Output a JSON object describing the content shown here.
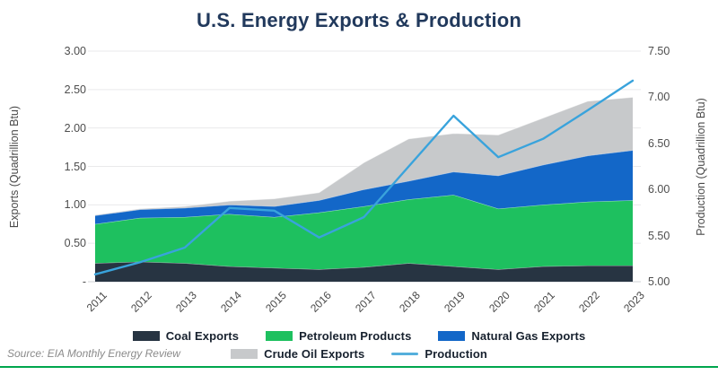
{
  "title": "U.S. Energy Exports & Production",
  "source": "Source: EIA Monthly Energy Review",
  "colors": {
    "title": "#21395c",
    "coal": "#273442",
    "petroleum": "#1ec05f",
    "natural_gas": "#1367c8",
    "crude_oil": "#c7c9cb",
    "production_line": "#39a3dc",
    "gridline": "#e9eaeb",
    "axis_line": "#cfd2d4",
    "accent_bar": "#00a64d"
  },
  "axes": {
    "left": {
      "title": "Exports (Quadrillion Btu)",
      "ticks": [
        "3.00",
        "2.50",
        "2.00",
        "1.50",
        "1.00",
        "0.50",
        "-"
      ],
      "tick_values": [
        3.0,
        2.5,
        2.0,
        1.5,
        1.0,
        0.5,
        0
      ],
      "range": [
        0,
        3.0
      ]
    },
    "right": {
      "title": "Production (Quadrillion Btu)",
      "ticks": [
        "7.50",
        "7.00",
        "6.50",
        "6.00",
        "5.50",
        "5.00"
      ],
      "tick_values": [
        7.5,
        7.0,
        6.5,
        6.0,
        5.5,
        5.0
      ],
      "range": [
        5.0,
        7.5
      ]
    }
  },
  "legend": {
    "rows": [
      [
        {
          "label": "Coal Exports",
          "color": "#273442",
          "shape": "rect"
        },
        {
          "label": "Petroleum Products",
          "color": "#1ec05f",
          "shape": "rect"
        },
        {
          "label": "Natural Gas Exports",
          "color": "#1367c8",
          "shape": "rect"
        }
      ],
      [
        {
          "label": "Crude Oil Exports",
          "color": "#c7c9cb",
          "shape": "rect"
        },
        {
          "label": "Production",
          "color": "#55afdc",
          "shape": "line"
        }
      ]
    ]
  },
  "chart_data": {
    "type": "area",
    "title": "U.S. Energy Exports & Production",
    "x": [
      2011,
      2012,
      2013,
      2014,
      2015,
      2016,
      2017,
      2018,
      2019,
      2020,
      2021,
      2022,
      2023
    ],
    "xlabel": "",
    "ylabel_left": "Exports (Quadrillion Btu)",
    "ylabel_right": "Production (Quadrillion Btu)",
    "ylim_left": [
      0,
      3.0
    ],
    "ylim_right": [
      5.0,
      7.5
    ],
    "grid": true,
    "legend_position": "bottom",
    "series": [
      {
        "name": "Coal Exports",
        "type": "stacked-area",
        "axis": "left",
        "color": "#273442",
        "values": [
          0.24,
          0.26,
          0.24,
          0.2,
          0.18,
          0.16,
          0.19,
          0.24,
          0.2,
          0.16,
          0.2,
          0.21,
          0.21
        ]
      },
      {
        "name": "Petroleum Products",
        "type": "stacked-area",
        "axis": "left",
        "color": "#1ec05f",
        "values": [
          0.51,
          0.57,
          0.6,
          0.68,
          0.66,
          0.74,
          0.79,
          0.83,
          0.93,
          0.79,
          0.8,
          0.83,
          0.85
        ]
      },
      {
        "name": "Natural Gas Exports",
        "type": "stacked-area",
        "axis": "left",
        "color": "#1367c8",
        "values": [
          0.11,
          0.11,
          0.12,
          0.12,
          0.14,
          0.16,
          0.22,
          0.24,
          0.3,
          0.43,
          0.52,
          0.6,
          0.65
        ]
      },
      {
        "name": "Crude Oil Exports",
        "type": "stacked-area",
        "axis": "left",
        "color": "#c7c9cb",
        "values": [
          0.01,
          0.01,
          0.02,
          0.05,
          0.1,
          0.1,
          0.35,
          0.55,
          0.5,
          0.53,
          0.61,
          0.71,
          0.69
        ]
      },
      {
        "name": "Production",
        "type": "line",
        "axis": "right",
        "color": "#39a3dc",
        "values": [
          5.08,
          5.21,
          5.37,
          5.8,
          5.77,
          5.48,
          5.7,
          6.25,
          6.8,
          6.35,
          6.55,
          6.86,
          7.18
        ]
      }
    ]
  }
}
